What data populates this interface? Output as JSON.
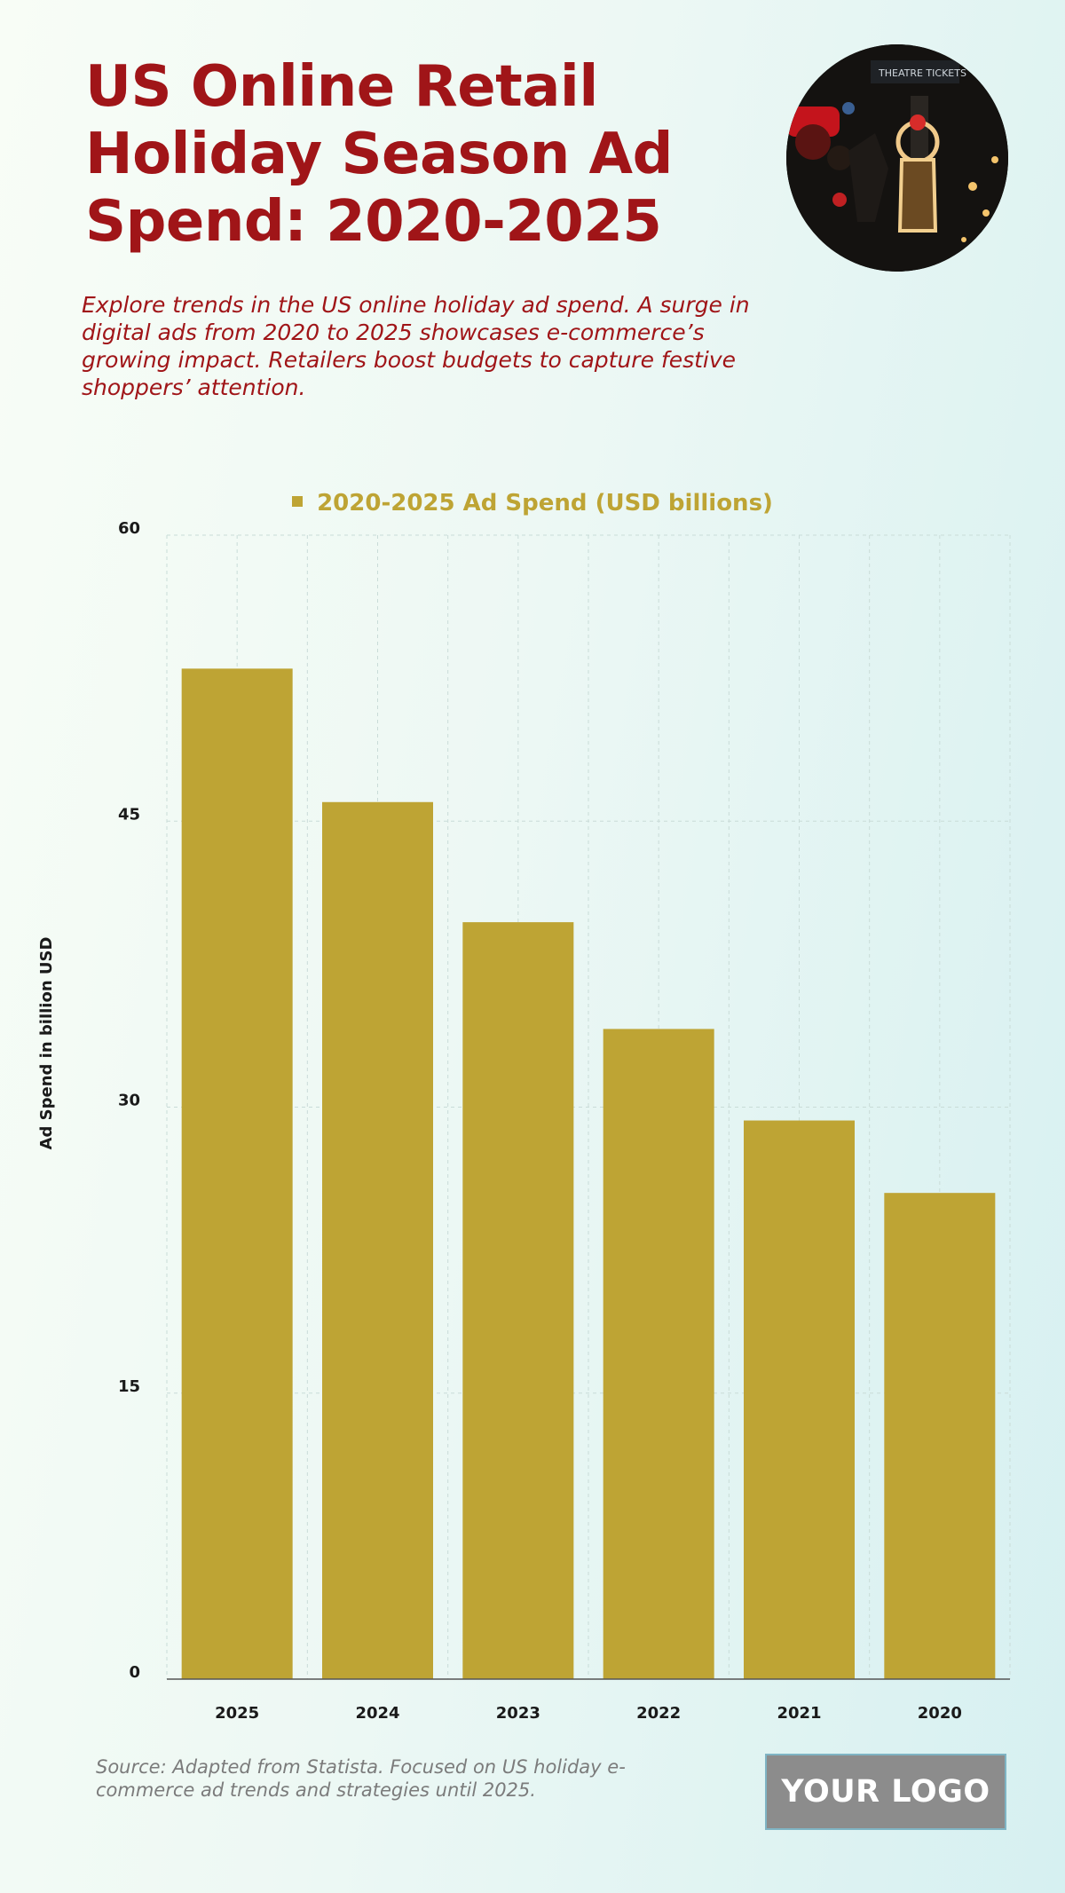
{
  "header": {
    "title": "US Online Retail Holiday Season Ad Spend: 2020-2025",
    "subtitle": "Explore trends in the US online holiday ad spend. A surge in digital ads from 2020 to 2025 showcases e-commerce’s growing impact. Retailers boost budgets to capture festive shoppers’ attention."
  },
  "footer": {
    "source": "Source: Adapted from Statista. Focused on US holiday e-commerce ad trends and strategies until 2025.",
    "logo": "YOUR LOGO"
  },
  "photo_sign": "THEATRE TICKETS",
  "colors": {
    "title": "#a01518",
    "bar": "#bea434",
    "grid": "#c9dcd8",
    "axis_text": "#1a1a1a"
  },
  "chart_data": {
    "type": "bar",
    "categories": [
      "2025",
      "2024",
      "2023",
      "2022",
      "2021",
      "2020"
    ],
    "series": [
      {
        "name": "2020-2025 Ad Spend (USD billions)",
        "values": [
          53.0,
          46.0,
          39.7,
          34.1,
          29.3,
          25.5
        ]
      }
    ],
    "ylabel": "Ad Spend in billion USD",
    "xlabel": "",
    "ylim": [
      0,
      60
    ],
    "yticks": [
      0,
      15,
      30,
      45,
      60
    ],
    "grid": true,
    "legend_position": "top-center"
  }
}
